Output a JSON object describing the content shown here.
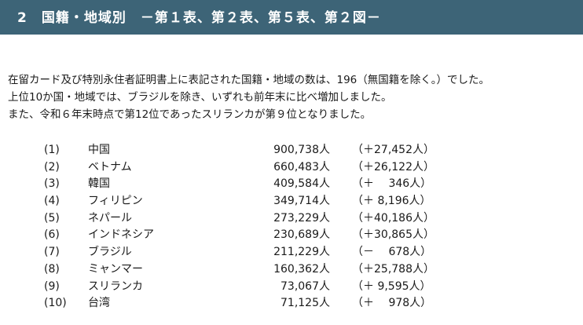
{
  "header": {
    "title": "2　国籍・地域別　－第１表、第２表、第５表、第２図－"
  },
  "intro": {
    "lines": [
      "在留カード及び特別永住者証明書上に表記された国籍・地域の数は、196（無国籍を除く。）でした。",
      "上位10か国・地域では、ブラジルを除き、いずれも前年末に比べ増加しました。",
      "また、令和６年末時点で第12位であったスリランカが第９位となりました。"
    ]
  },
  "ranking": [
    {
      "rank": "(1)",
      "country": "中国",
      "count": "900,738人",
      "change": "（＋27,452人）"
    },
    {
      "rank": "(2)",
      "country": "ベトナム",
      "count": "660,483人",
      "change": "（＋26,122人）"
    },
    {
      "rank": "(3)",
      "country": "韓国",
      "count": "409,584人",
      "change": "（＋　 346人）"
    },
    {
      "rank": "(4)",
      "country": "フィリピン",
      "count": "349,714人",
      "change": "（＋ 8,196人）"
    },
    {
      "rank": "(5)",
      "country": "ネパール",
      "count": "273,229人",
      "change": "（＋40,186人）"
    },
    {
      "rank": "(6)",
      "country": "インドネシア",
      "count": "230,689人",
      "change": "（＋30,865人）"
    },
    {
      "rank": "(7)",
      "country": "ブラジル",
      "count": "211,229人",
      "change": "（－　 678人）"
    },
    {
      "rank": "(8)",
      "country": "ミャンマー",
      "count": "160,362人",
      "change": "（＋25,788人）"
    },
    {
      "rank": "(9)",
      "country": "スリランカ",
      "count": "73,067人",
      "change": "（＋ 9,595人）"
    },
    {
      "rank": "(10)",
      "country": "台湾",
      "count": "71,125人",
      "change": "（＋　 978人）"
    }
  ]
}
